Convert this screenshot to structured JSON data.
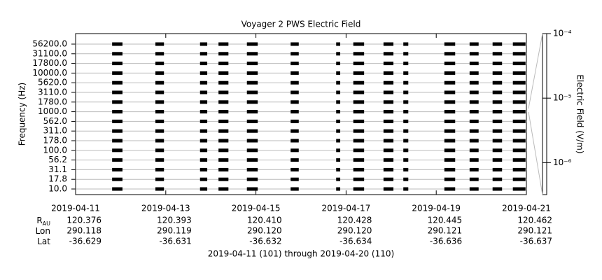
{
  "chart_data": {
    "type": "timeline",
    "title": "Voyager 2 PWS Electric Field",
    "y_label": "Frequency (Hz)",
    "colorbar_label": "Electric Field (V/m)",
    "categories": [
      "10.0",
      "17.8",
      "31.1",
      "56.2",
      "100.0",
      "178.0",
      "311.0",
      "562.0",
      "1000.0",
      "1780.0",
      "3110.0",
      "5620.0",
      "10000.0",
      "17800.0",
      "31100.0",
      "56200.0"
    ],
    "xlim": [
      0,
      10
    ],
    "xticks": [
      {
        "value": 0,
        "label": "2019-04-11"
      },
      {
        "value": 2,
        "label": "2019-04-13"
      },
      {
        "value": 4,
        "label": "2019-04-15"
      },
      {
        "value": 6,
        "label": "2019-04-17"
      },
      {
        "value": 8,
        "label": "2019-04-19"
      },
      {
        "value": 10,
        "label": "2019-04-21"
      }
    ],
    "intervals": [
      [
        0.81,
        1.04
      ],
      [
        1.77,
        1.96
      ],
      [
        2.76,
        2.92
      ],
      [
        3.17,
        3.39
      ],
      [
        3.8,
        4.04
      ],
      [
        4.77,
        4.95
      ],
      [
        5.78,
        5.87
      ],
      [
        6.16,
        6.4
      ],
      [
        6.83,
        7.05
      ],
      [
        7.27,
        7.38
      ],
      [
        8.18,
        8.42
      ],
      [
        8.74,
        8.94
      ],
      [
        9.25,
        9.46
      ],
      [
        9.7,
        9.98
      ]
    ],
    "color": "#000000",
    "zlim": [
      3.2e-07,
      0.0001
    ],
    "zscale": "log",
    "zticks": [
      {
        "value": 0.0001,
        "label": "10⁻⁴"
      },
      {
        "value": 1e-05,
        "label": "10⁻⁵"
      },
      {
        "value": 1e-06,
        "label": "10⁻⁶"
      }
    ],
    "grid": true,
    "ephemeris": {
      "rows": [
        {
          "label": "R",
          "sub": "AU",
          "values": [
            "120.376",
            "120.393",
            "120.410",
            "120.428",
            "120.445",
            "120.462"
          ]
        },
        {
          "label": "Lon",
          "values": [
            "290.118",
            "290.119",
            "290.120",
            "290.120",
            "290.121",
            "290.121"
          ]
        },
        {
          "label": "Lat",
          "values": [
            "-36.629",
            "-36.631",
            "-36.632",
            "-36.634",
            "-36.636",
            "-36.637"
          ]
        }
      ]
    },
    "footer": "2019-04-11 (101) through 2019-04-20 (110)"
  }
}
